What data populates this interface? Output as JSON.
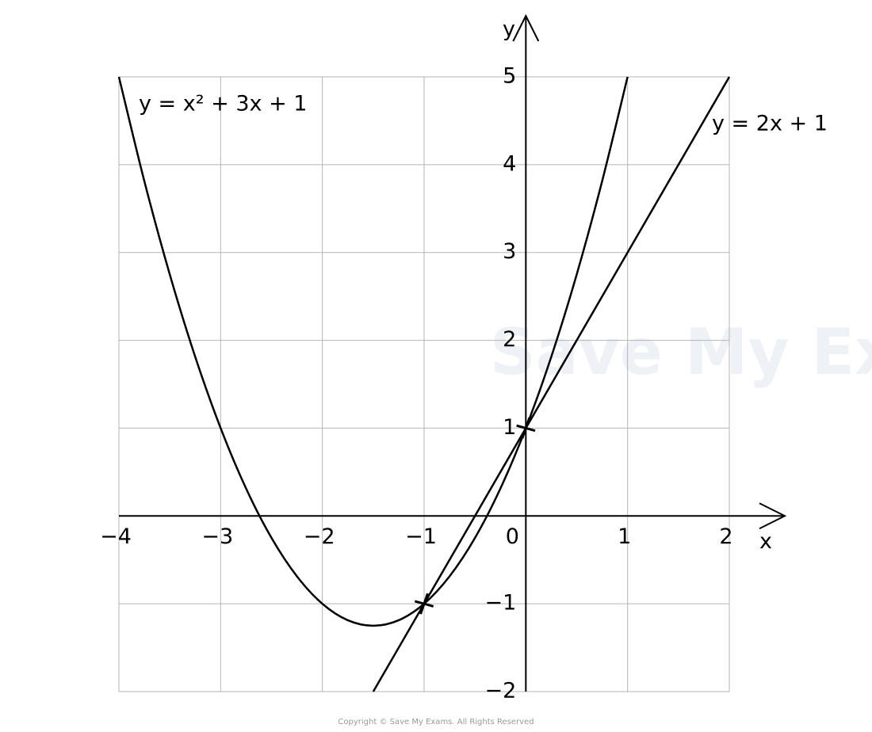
{
  "chart_data": {
    "type": "line",
    "x_label": "x",
    "y_label": "y",
    "xlim": [
      -4,
      2
    ],
    "ylim": [
      -2,
      5
    ],
    "xticks": [
      {
        "value": -4,
        "label": "−4"
      },
      {
        "value": -3,
        "label": "−3"
      },
      {
        "value": -2,
        "label": "−2"
      },
      {
        "value": -1,
        "label": "−1"
      },
      0,
      1,
      2
    ],
    "yticks": [
      {
        "value": -2,
        "label": "−2"
      },
      {
        "value": -1,
        "label": "−1"
      },
      1,
      2,
      3,
      4,
      5
    ],
    "grid": true,
    "series": [
      {
        "name": "y = x² + 3x + 1",
        "color": "#000000",
        "x": [
          -4,
          -3.75,
          -3.5,
          -3.25,
          -3,
          -2.75,
          -2.5,
          -2.25,
          -2,
          -1.75,
          -1.5,
          -1.25,
          -1,
          -0.75,
          -0.5,
          -0.25,
          0,
          0.25,
          0.5,
          0.75,
          1
        ],
        "values": [
          5,
          3.8125,
          2.75,
          1.8125,
          1,
          0.3125,
          -0.25,
          -0.6875,
          -1,
          -1.1875,
          -1.25,
          -1.1875,
          -1,
          -0.6875,
          -0.25,
          0.3125,
          1,
          1.8125,
          2.75,
          3.8125,
          5
        ]
      },
      {
        "name": "y = 2x + 1",
        "color": "#000000",
        "x": [
          -1.5,
          2
        ],
        "values": [
          -2,
          5
        ]
      }
    ],
    "points": [
      {
        "x": -1,
        "y": -1
      },
      {
        "x": 0,
        "y": 1
      }
    ],
    "watermark": "Save My Exams",
    "footer": "Copyright © Save My Exams. All Rights Reserved"
  }
}
